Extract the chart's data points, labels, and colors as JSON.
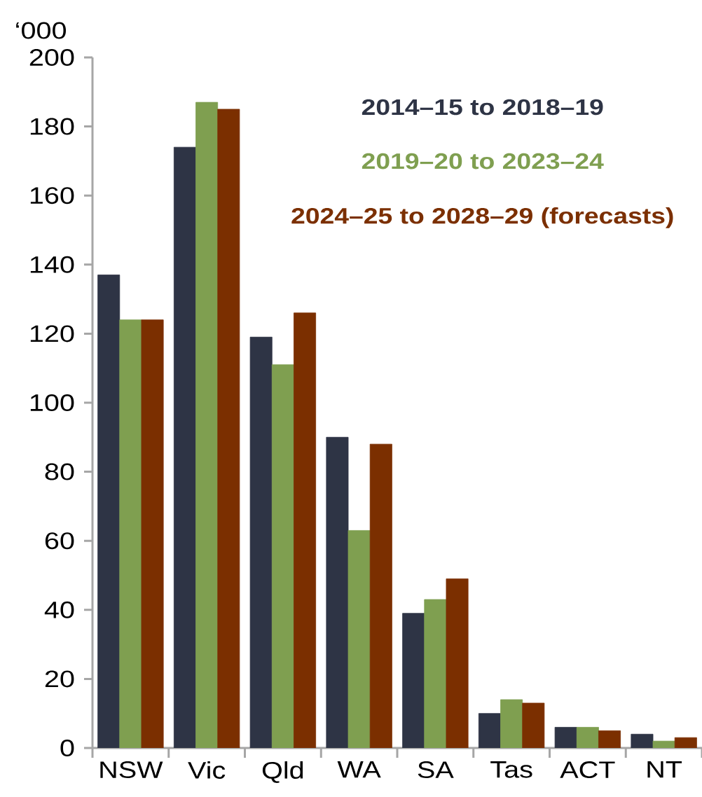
{
  "chart_data": {
    "type": "bar",
    "ylabel": "‘000",
    "categories": [
      "NSW",
      "Vic",
      "Qld",
      "WA",
      "SA",
      "Tas",
      "ACT",
      "NT"
    ],
    "series": [
      {
        "name": "2014–15 to 2018–19",
        "color": "#2e3445",
        "values": [
          137,
          174,
          119,
          90,
          39,
          10,
          6,
          4
        ]
      },
      {
        "name": "2019–20 to 2023–24",
        "color": "#7f9f50",
        "values": [
          124,
          187,
          111,
          63,
          43,
          14,
          6,
          2
        ]
      },
      {
        "name": "2024–25 to 2028–29 (forecasts)",
        "color": "#7b2f00",
        "values": [
          124,
          185,
          126,
          88,
          49,
          13,
          5,
          3
        ]
      }
    ],
    "ylim": [
      0,
      200
    ],
    "yticks": [
      0,
      20,
      40,
      60,
      80,
      100,
      120,
      140,
      160,
      180,
      200
    ],
    "legend": "top right"
  }
}
